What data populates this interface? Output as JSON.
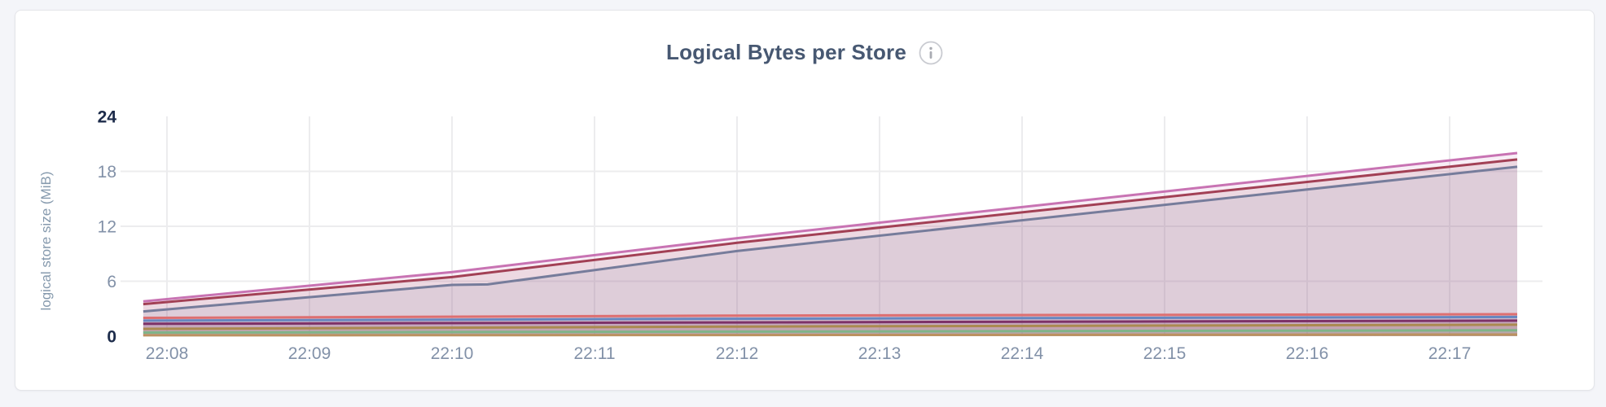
{
  "header": {
    "title": "Logical Bytes per Store",
    "info_icon": "i"
  },
  "colors": {
    "page_background": "#f4f5f9",
    "card_background": "#ffffff",
    "card_border": "#e4e5e9",
    "title_text": "#475872",
    "tick_text_strong": "#1c2b4a",
    "tick_text_light": "#8291a8",
    "gridline": "#ececee",
    "info_icon_stroke": "#c9cbd1",
    "info_icon_glyph": "#a9abb2"
  },
  "chart_data": {
    "type": "area",
    "title": "Logical Bytes per Store",
    "xlabel": "",
    "ylabel": "logical store size (MiB)",
    "ylim": [
      0,
      24
    ],
    "y_ticks": [
      24,
      18,
      12,
      6,
      0
    ],
    "x_ticks": [
      "22:08",
      "22:09",
      "22:10",
      "22:11",
      "22:12",
      "22:13",
      "22:14",
      "22:15",
      "22:16",
      "22:17"
    ],
    "x_unit": "minutes relative to 22:08",
    "x_data_range": [
      -0.166,
      9.474
    ],
    "grid": true,
    "legend": "none",
    "fill_opacity": 0.12,
    "line_width": 3,
    "series": [
      {
        "color": "#c873b3",
        "points": [
          [
            -0.166,
            3.8
          ],
          [
            2.0,
            7.0
          ],
          [
            4.0,
            10.7
          ],
          [
            9.474,
            20.0
          ]
        ]
      },
      {
        "color": "#a24055",
        "points": [
          [
            -0.166,
            3.5
          ],
          [
            2.0,
            6.45
          ],
          [
            4.0,
            10.2
          ],
          [
            9.474,
            19.3
          ]
        ]
      },
      {
        "color": "#767c9b",
        "points": [
          [
            -0.166,
            2.7
          ],
          [
            2.0,
            5.6
          ],
          [
            2.25,
            5.65
          ],
          [
            4.0,
            9.3
          ],
          [
            9.474,
            18.5
          ]
        ]
      },
      {
        "color": "#dd6f71",
        "points": [
          [
            -0.166,
            2.0
          ],
          [
            4.0,
            2.25
          ],
          [
            9.474,
            2.4
          ]
        ]
      },
      {
        "color": "#6787c0",
        "points": [
          [
            -0.166,
            1.7
          ],
          [
            4.0,
            1.9
          ],
          [
            9.474,
            2.1
          ]
        ]
      },
      {
        "color": "#7d3268",
        "points": [
          [
            -0.166,
            1.35
          ],
          [
            4.0,
            1.5
          ],
          [
            9.474,
            1.7
          ]
        ]
      },
      {
        "color": "#ab8a50",
        "points": [
          [
            -0.166,
            0.8
          ],
          [
            4.0,
            1.05
          ],
          [
            9.474,
            1.25
          ]
        ]
      },
      {
        "color": "#7fb488",
        "points": [
          [
            -0.166,
            0.4
          ],
          [
            4.0,
            0.5
          ],
          [
            9.474,
            0.65
          ]
        ]
      },
      {
        "color": "#bb9260",
        "points": [
          [
            -0.166,
            0.1
          ],
          [
            4.0,
            0.12
          ],
          [
            9.474,
            0.18
          ]
        ]
      }
    ]
  }
}
